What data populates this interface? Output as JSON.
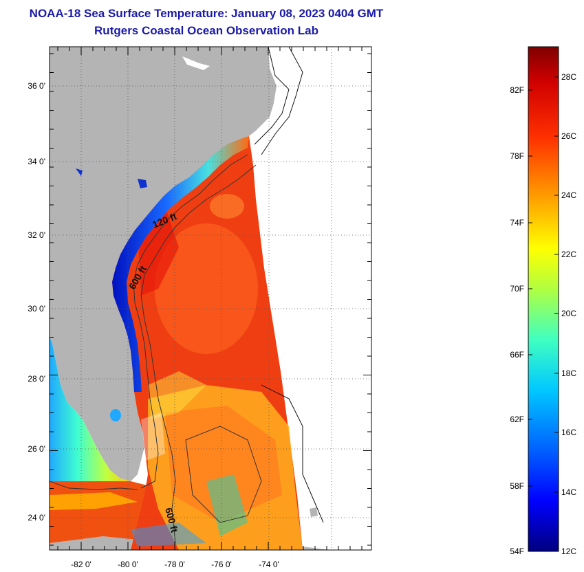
{
  "title": "NOAA-18 Sea Surface Temperature:  January 08, 2023 0404 GMT",
  "subtitle": "Rutgers Coastal Ocean Observation Lab",
  "map": {
    "lat_labels": [
      "36 0'",
      "34 0'",
      "32 0'",
      "30 0'",
      "28 0'",
      "26 0'",
      "24 0'"
    ],
    "lon_labels": [
      "-82 0'",
      "-80 0'",
      "-78 0'",
      "-76 0'",
      "-74 0'"
    ],
    "depth_labels": [
      "120 ft",
      "600 ft",
      "600 ft"
    ]
  },
  "colorbar": {
    "fahrenheit_labels": [
      "82F",
      "78F",
      "74F",
      "70F",
      "66F",
      "62F",
      "58F",
      "54F"
    ],
    "celsius_labels": [
      "28C",
      "26C",
      "24C",
      "22C",
      "20C",
      "18C",
      "16C",
      "14C",
      "12C"
    ]
  },
  "colors": {
    "land": "#b4b4b4",
    "title": "#1a1aa8",
    "warm": "#e8220f",
    "cold": "#0a1ed0"
  }
}
